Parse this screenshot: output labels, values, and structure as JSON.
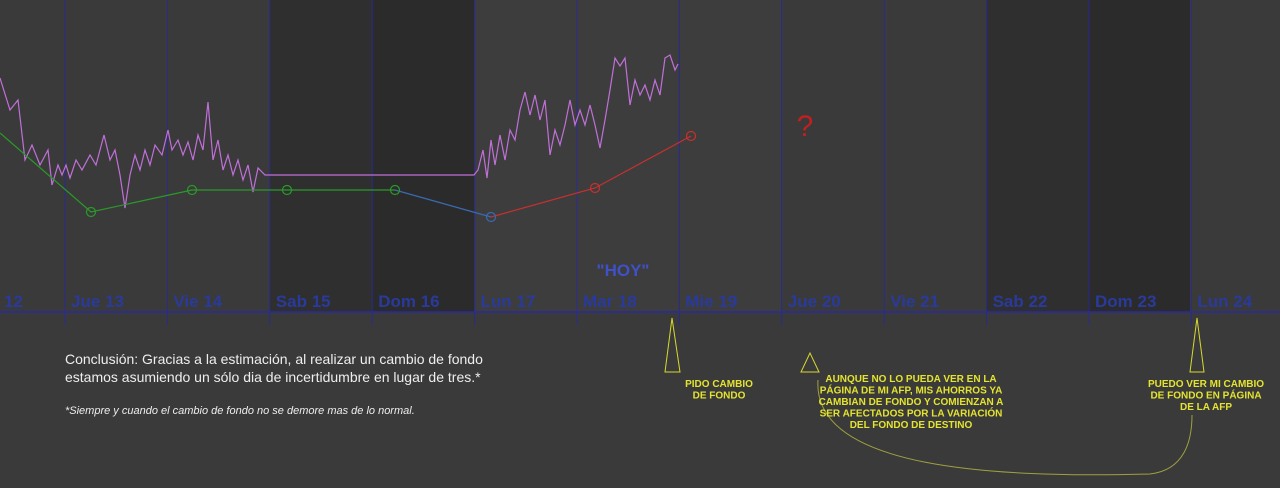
{
  "days": [
    "12",
    "Jue 13",
    "Vie 14",
    "Sab 15",
    "Dom 16",
    "Lun 17",
    "Mar 18",
    "Mie 19",
    "Jue 20",
    "Vie 21",
    "Sab 22",
    "Dom 23",
    "Lun 24"
  ],
  "today_label": "\"HOY\"",
  "question_mark": "?",
  "conclusion": [
    "Conclusión: Gracias a la estimación, al realizar un cambio de fondo",
    "estamos asumiendo un sólo dia de incertidumbre en lugar de tres.*"
  ],
  "footnote": "*Siempre y cuando el cambio de fondo no se demore mas de lo normal.",
  "annotations": [
    {
      "lines": [
        "PIDO CAMBIO",
        "DE FONDO"
      ]
    },
    {
      "lines": [
        "AUNQUE NO LO PUEDA VER EN LA",
        "PÁGINA DE MI AFP, MIS AHORROS YA",
        "CAMBIAN DE FONDO Y COMIENZAN A",
        "SER AFECTADOS POR LA VARIACIÓN",
        "DEL FONDO DE DESTINO"
      ]
    },
    {
      "lines": [
        "PUEDO VER MI CAMBIO",
        "DE FONDO EN PÁGINA",
        "DE LA AFP"
      ]
    }
  ]
}
